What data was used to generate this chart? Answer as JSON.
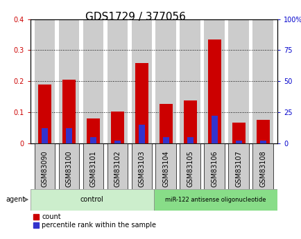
{
  "title": "GDS1729 / 377056",
  "samples": [
    "GSM83090",
    "GSM83100",
    "GSM83101",
    "GSM83102",
    "GSM83103",
    "GSM83104",
    "GSM83105",
    "GSM83106",
    "GSM83107",
    "GSM83108"
  ],
  "count_values": [
    0.19,
    0.205,
    0.08,
    0.102,
    0.258,
    0.127,
    0.138,
    0.335,
    0.068,
    0.076
  ],
  "percentile_values": [
    12.5,
    12.5,
    5.0,
    2.5,
    15.0,
    5.0,
    5.0,
    22.5,
    2.5,
    2.5
  ],
  "n_control": 5,
  "n_treatment": 5,
  "control_label": "control",
  "treatment_label": "miR-122 antisense oligonucleotide",
  "agent_label": "agent",
  "count_color": "#cc0000",
  "percentile_color": "#3333cc",
  "bar_bg_color": "#cccccc",
  "control_bg": "#cceecc",
  "treatment_bg": "#88dd88",
  "ylim_left": [
    0,
    0.4
  ],
  "ylim_right": [
    0,
    100
  ],
  "yticks_left": [
    0,
    0.1,
    0.2,
    0.3,
    0.4
  ],
  "yticks_right": [
    0,
    25,
    50,
    75,
    100
  ],
  "ytick_labels_left": [
    "0",
    "0.1",
    "0.2",
    "0.3",
    "0.4"
  ],
  "ytick_labels_right": [
    "0",
    "25",
    "50",
    "75",
    "100%"
  ],
  "left_color": "#cc0000",
  "right_color": "#0000cc",
  "grid_color": "#000000",
  "title_fontsize": 11,
  "tick_fontsize": 7,
  "label_fontsize": 7,
  "bar_width": 0.55,
  "perc_bar_width": 0.25
}
